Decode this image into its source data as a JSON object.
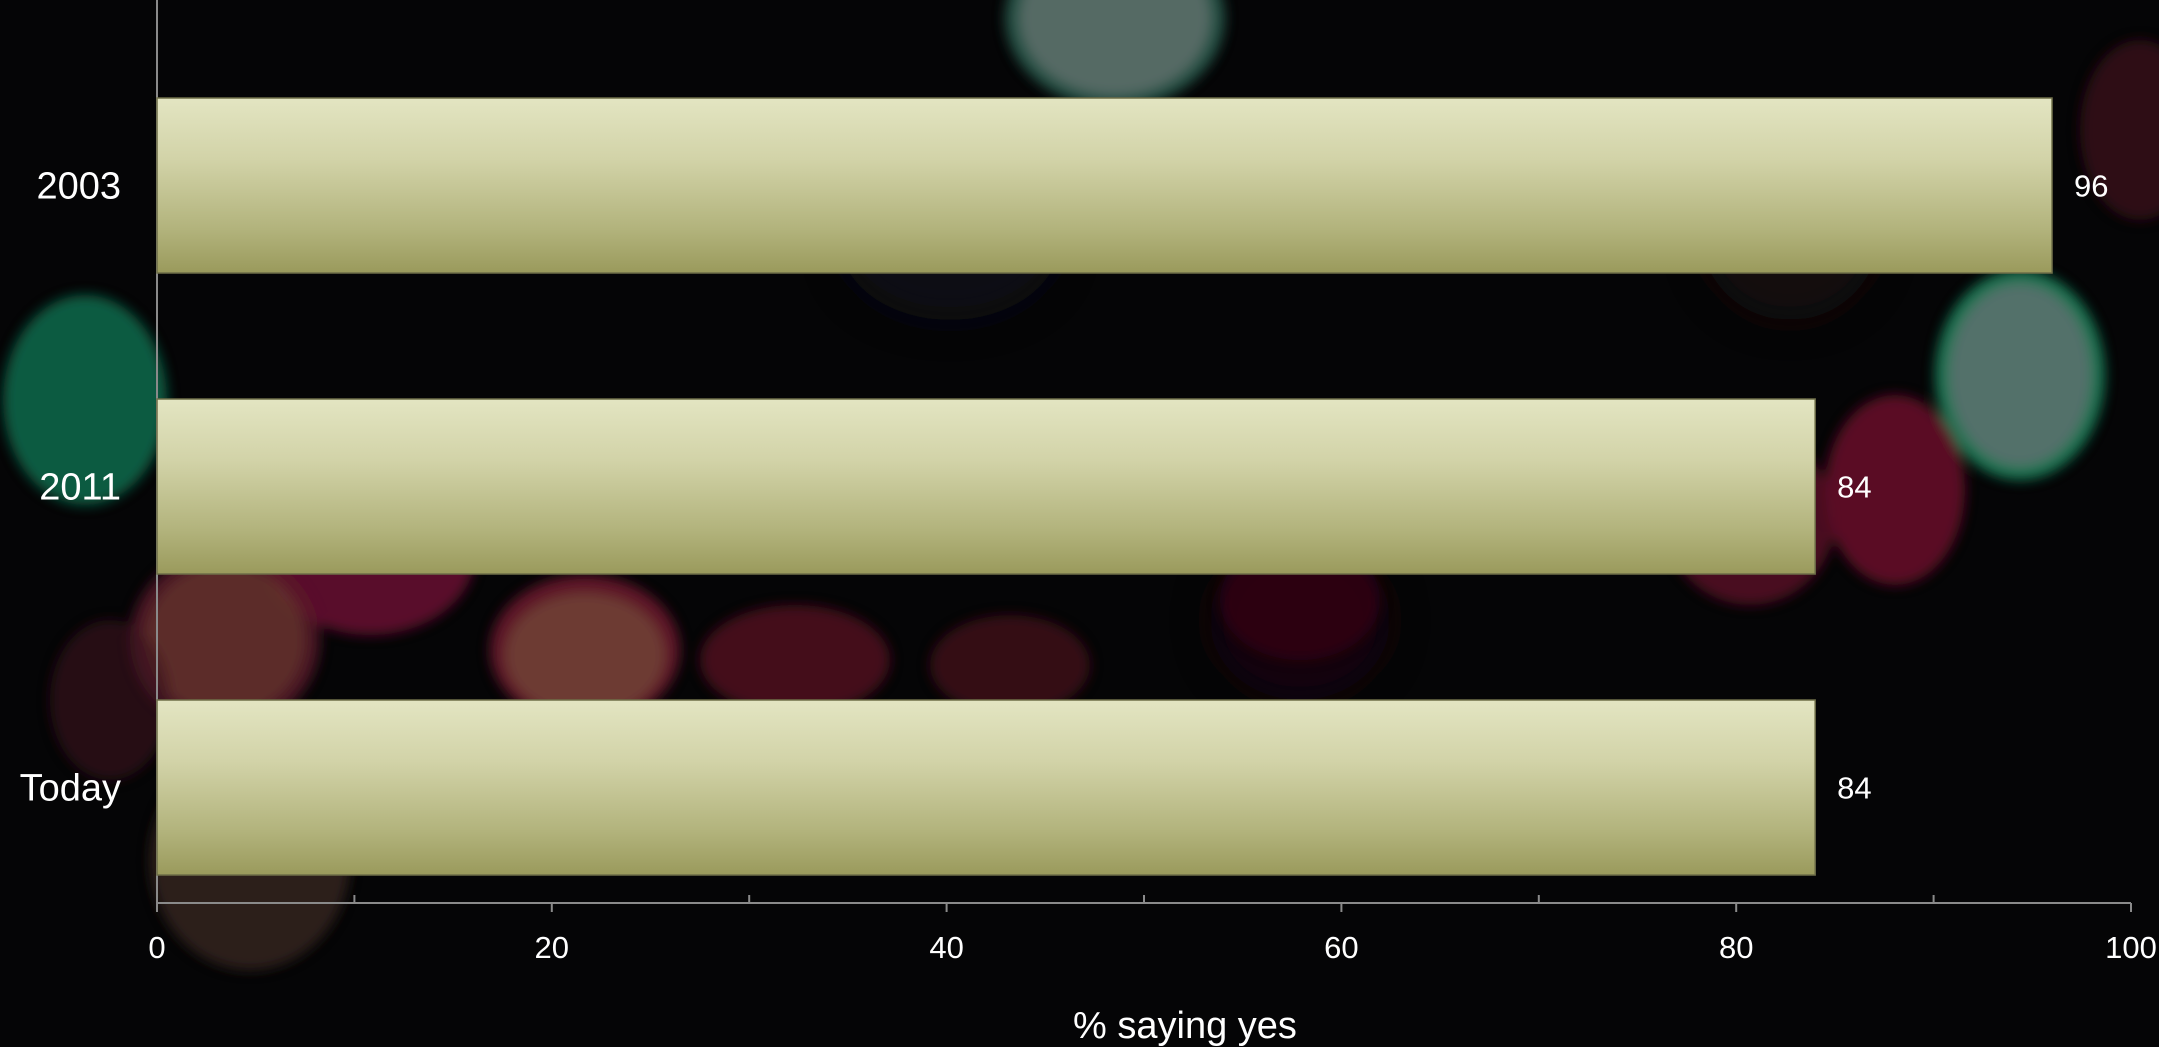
{
  "chart_data": {
    "type": "bar",
    "orientation": "horizontal",
    "categories": [
      "2003",
      "2011",
      "Today"
    ],
    "values": [
      96,
      84,
      84
    ],
    "data_labels": [
      "96",
      "84",
      "84"
    ],
    "xlabel": "% saying yes",
    "ylabel": "",
    "xlim": [
      0,
      100
    ],
    "x_ticks": [
      0,
      20,
      40,
      60,
      80,
      100
    ],
    "x_tick_labels": [
      "0",
      "20",
      "40",
      "60",
      "80",
      "100"
    ],
    "grid": false,
    "legend": "none",
    "colors": {
      "bar_top": "#e3e5c2",
      "bar_bottom": "#9a9a5c",
      "background": "#050506",
      "text": "#ffffff",
      "axis": "#8a8a8a"
    }
  }
}
